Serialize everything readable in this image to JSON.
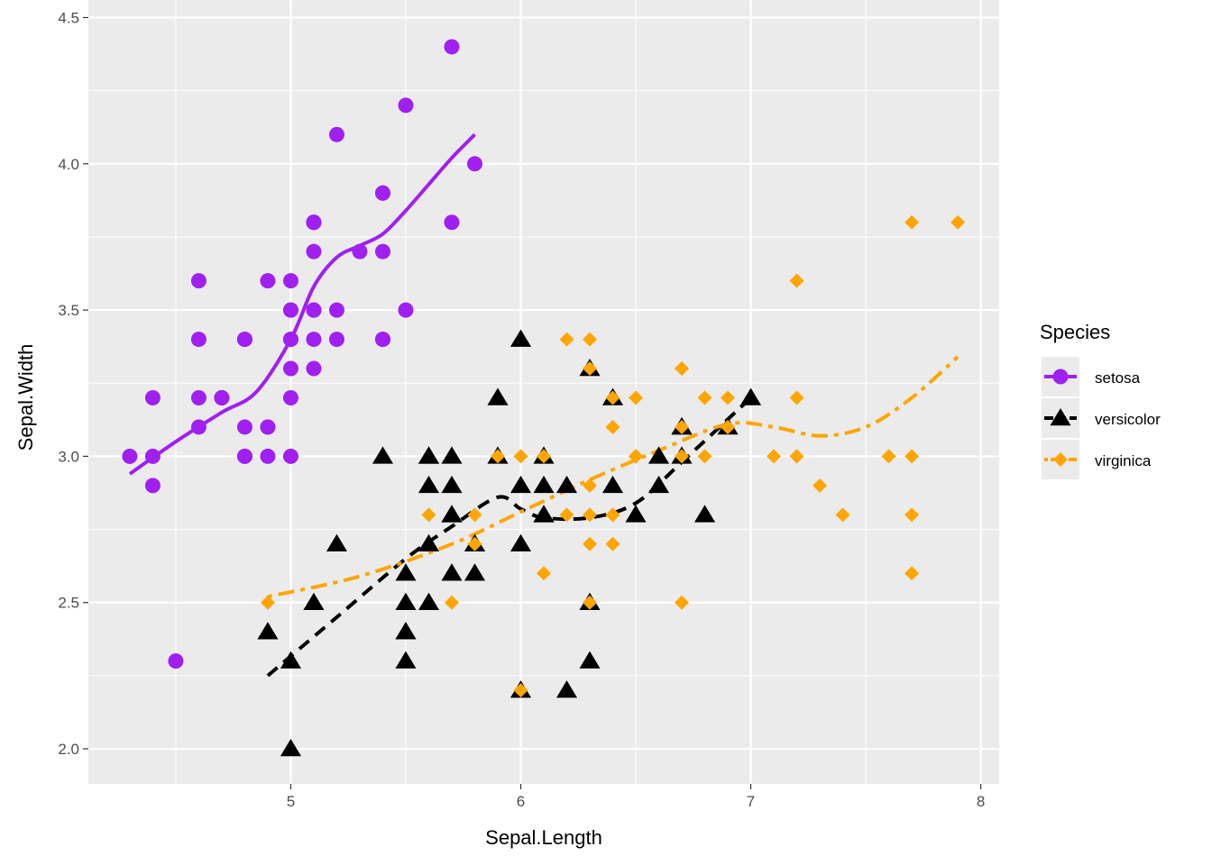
{
  "chart_data": {
    "type": "scatter",
    "xlabel": "Sepal.Length",
    "ylabel": "Sepal.Width",
    "xlim": [
      4.12,
      8.08
    ],
    "ylim": [
      1.88,
      4.56
    ],
    "x_ticks": [
      5,
      6,
      7,
      8
    ],
    "x_tick_labels": [
      "5",
      "6",
      "7",
      "8"
    ],
    "y_ticks": [
      2.0,
      2.5,
      3.0,
      3.5,
      4.0,
      4.5
    ],
    "y_tick_labels": [
      "2.0",
      "2.5",
      "3.0",
      "3.5",
      "4.0",
      "4.5"
    ],
    "grid": true,
    "legend": {
      "title": "Species",
      "position": "right"
    },
    "series": [
      {
        "name": "setosa",
        "color": "#a020f0",
        "shape": "circle",
        "line": "solid",
        "x": [
          5.1,
          4.9,
          4.7,
          4.6,
          5.0,
          5.4,
          4.6,
          5.0,
          4.4,
          4.9,
          5.4,
          4.8,
          4.8,
          4.3,
          5.8,
          5.7,
          5.4,
          5.1,
          5.7,
          5.1,
          5.4,
          5.1,
          4.6,
          5.1,
          4.8,
          5.0,
          5.0,
          5.2,
          5.2,
          4.7,
          4.8,
          5.4,
          5.2,
          5.5,
          4.9,
          5.0,
          5.5,
          4.9,
          4.4,
          5.1,
          5.0,
          4.5,
          4.4,
          5.0,
          5.1,
          4.8,
          5.1,
          4.6,
          5.3,
          5.0
        ],
        "y": [
          3.5,
          3.0,
          3.2,
          3.1,
          3.6,
          3.9,
          3.4,
          3.4,
          2.9,
          3.1,
          3.7,
          3.4,
          3.0,
          3.0,
          4.0,
          4.4,
          3.9,
          3.5,
          3.8,
          3.8,
          3.4,
          3.7,
          3.6,
          3.3,
          3.4,
          3.0,
          3.4,
          3.5,
          3.4,
          3.2,
          3.1,
          3.4,
          4.1,
          4.2,
          3.1,
          3.2,
          3.5,
          3.6,
          3.0,
          3.4,
          3.5,
          2.3,
          3.2,
          3.5,
          3.8,
          3.0,
          3.8,
          3.2,
          3.7,
          3.3
        ],
        "smooth": {
          "x": [
            4.3,
            4.5,
            4.7,
            4.85,
            5.0,
            5.1,
            5.2,
            5.3,
            5.4,
            5.5,
            5.6,
            5.7,
            5.8
          ],
          "y": [
            2.94,
            3.05,
            3.15,
            3.22,
            3.4,
            3.58,
            3.68,
            3.72,
            3.76,
            3.84,
            3.93,
            4.02,
            4.1
          ]
        }
      },
      {
        "name": "versicolor",
        "color": "#000000",
        "shape": "triangle",
        "line": "dashed",
        "x": [
          7.0,
          6.4,
          6.9,
          5.5,
          6.5,
          5.7,
          6.3,
          4.9,
          6.6,
          5.2,
          5.0,
          5.9,
          6.0,
          6.1,
          5.6,
          6.7,
          5.6,
          5.8,
          6.2,
          5.6,
          5.9,
          6.1,
          6.3,
          6.1,
          6.4,
          6.6,
          6.8,
          6.7,
          6.0,
          5.7,
          5.5,
          5.5,
          5.8,
          6.0,
          5.4,
          6.0,
          6.7,
          6.3,
          5.6,
          5.5,
          5.5,
          6.1,
          5.8,
          5.0,
          5.6,
          5.7,
          5.7,
          6.2,
          5.1,
          5.7
        ],
        "y": [
          3.2,
          3.2,
          3.1,
          2.3,
          2.8,
          2.8,
          3.3,
          2.4,
          2.9,
          2.7,
          2.0,
          3.0,
          2.2,
          2.9,
          2.9,
          3.1,
          3.0,
          2.7,
          2.2,
          2.5,
          3.2,
          2.8,
          2.5,
          2.8,
          2.9,
          3.0,
          2.8,
          3.0,
          2.9,
          2.6,
          2.4,
          2.4,
          2.7,
          2.7,
          3.0,
          3.4,
          3.1,
          2.3,
          3.0,
          2.5,
          2.6,
          3.0,
          2.6,
          2.3,
          2.7,
          3.0,
          2.9,
          2.9,
          2.5,
          2.8
        ],
        "smooth": {
          "x": [
            4.9,
            5.2,
            5.5,
            5.7,
            5.9,
            6.0,
            6.1,
            6.3,
            6.5,
            6.7,
            7.0
          ],
          "y": [
            2.25,
            2.45,
            2.65,
            2.76,
            2.86,
            2.82,
            2.79,
            2.79,
            2.84,
            2.98,
            3.2
          ]
        }
      },
      {
        "name": "virginica",
        "color": "#ffa500",
        "shape": "diamond",
        "line": "dotdash",
        "x": [
          6.3,
          5.8,
          7.1,
          6.3,
          6.5,
          7.6,
          4.9,
          7.3,
          6.7,
          7.2,
          6.5,
          6.4,
          6.8,
          5.7,
          5.8,
          6.4,
          6.5,
          7.7,
          7.7,
          6.0,
          6.9,
          5.6,
          7.7,
          6.3,
          6.7,
          7.2,
          6.2,
          6.1,
          6.4,
          7.2,
          7.4,
          7.9,
          6.4,
          6.3,
          6.1,
          7.7,
          6.3,
          6.4,
          6.0,
          6.9,
          6.7,
          6.9,
          5.8,
          6.8,
          6.7,
          6.7,
          6.3,
          6.5,
          6.2,
          5.9
        ],
        "y": [
          3.3,
          2.7,
          3.0,
          2.9,
          3.0,
          3.0,
          2.5,
          2.9,
          2.5,
          3.6,
          3.2,
          2.7,
          3.0,
          2.5,
          2.8,
          3.2,
          3.0,
          3.8,
          2.6,
          2.2,
          3.2,
          2.8,
          2.8,
          2.7,
          3.3,
          3.2,
          2.8,
          3.0,
          2.8,
          3.0,
          2.8,
          3.8,
          2.8,
          2.8,
          2.6,
          3.0,
          3.4,
          3.1,
          3.0,
          3.1,
          3.1,
          3.1,
          2.7,
          3.2,
          3.3,
          3.0,
          2.5,
          3.0,
          3.4,
          3.0
        ],
        "smooth": {
          "x": [
            4.9,
            5.3,
            5.7,
            6.0,
            6.3,
            6.6,
            6.9,
            7.1,
            7.3,
            7.5,
            7.7,
            7.9
          ],
          "y": [
            2.52,
            2.59,
            2.7,
            2.81,
            2.92,
            3.02,
            3.11,
            3.1,
            3.07,
            3.1,
            3.2,
            3.34
          ]
        }
      }
    ]
  }
}
